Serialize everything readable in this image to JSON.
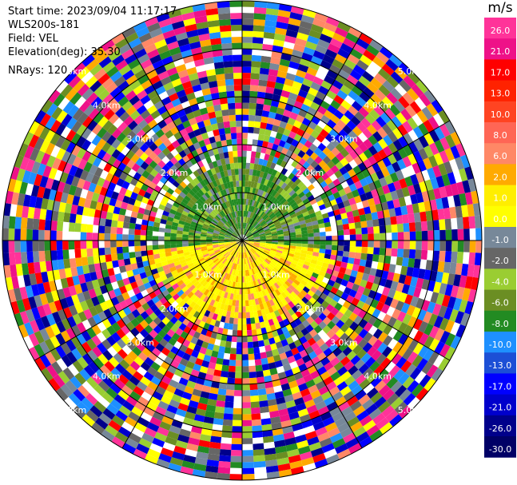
{
  "header": {
    "start_time": "Start time: 2023/09/04 11:17:17",
    "instrument": "WLS200s-181",
    "field": "Field: VEL",
    "elevation": "Elevation(deg): 35.30",
    "nrays": "NRays: 120"
  },
  "colorbar": {
    "unit": "m/s",
    "ticks": [
      "26.0",
      "21.0",
      "17.0",
      "13.0",
      "10.0",
      "8.0",
      "6.0",
      "2.0",
      "1.0",
      "0.0",
      "-1.0",
      "-2.0",
      "-4.0",
      "-6.0",
      "-8.0",
      "-10.0",
      "-13.0",
      "-17.0",
      "-21.0",
      "-26.0",
      "-30.0"
    ],
    "colors": [
      "#ff3399",
      "#ee1188",
      "#ff0000",
      "#ff2200",
      "#ff4422",
      "#ff6655",
      "#ff8866",
      "#ffaa00",
      "#ffee00",
      "#ffff00",
      "#778899",
      "#666666",
      "#9acd32",
      "#6b8e23",
      "#228b22",
      "#1e90ff",
      "#1c4fd6",
      "#0000ff",
      "#0000cc",
      "#00008b",
      "#000066"
    ]
  },
  "chart_data": {
    "type": "heatmap",
    "projection": "polar (PPI)",
    "field": "VEL",
    "units": "m/s",
    "n_rays": 120,
    "range_rings_km": [
      1.0,
      2.0,
      3.0,
      4.0,
      5.0
    ],
    "ring_labels": [
      "1.0km",
      "2.0km",
      "3.0km",
      "4.0km",
      "5.0km"
    ],
    "color_scale_min": -30.0,
    "color_scale_max": 26.0,
    "pattern": {
      "inner_region_north": "approx -4 to -8 m/s (green)",
      "inner_region_south": "approx 2 to 10 m/s (yellow/orange)",
      "outer_region": "noise spanning the full color scale"
    }
  }
}
